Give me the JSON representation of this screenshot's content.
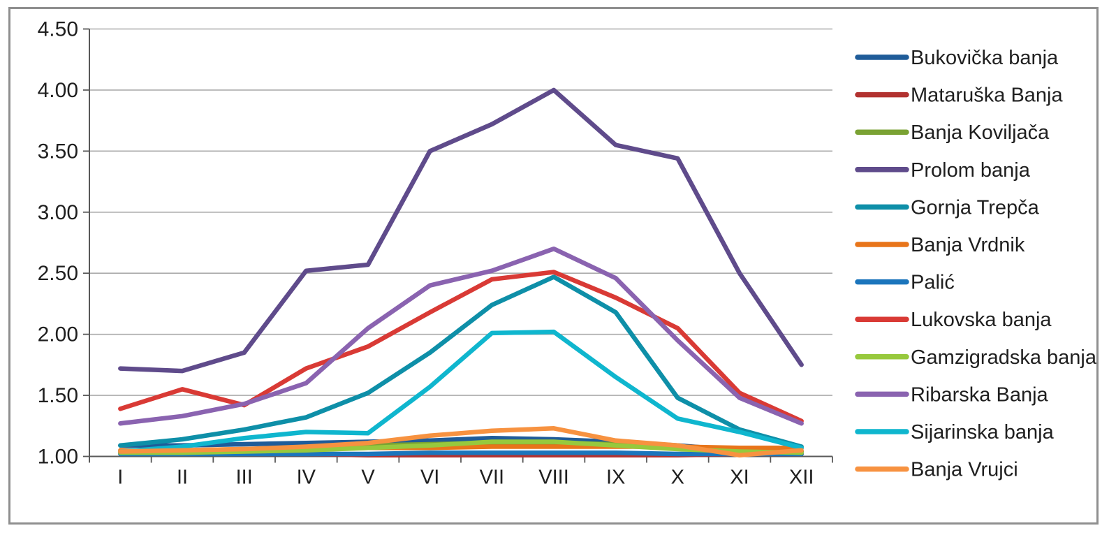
{
  "chart_data": {
    "type": "line",
    "title": "",
    "xlabel": "",
    "ylabel": "",
    "categories": [
      "I",
      "II",
      "III",
      "IV",
      "V",
      "VI",
      "VII",
      "VIII",
      "IX",
      "X",
      "XI",
      "XII"
    ],
    "y_ticks": [
      "4.50",
      "4.00",
      "3.50",
      "3.00",
      "2.50",
      "2.00",
      "1.50",
      "1.00"
    ],
    "ylim": [
      1.0,
      4.5
    ],
    "grid": true,
    "legend_position": "right",
    "series": [
      {
        "name": "Bukovička banja",
        "color": "#1F5C99",
        "values": [
          1.09,
          1.09,
          1.1,
          1.11,
          1.12,
          1.13,
          1.15,
          1.14,
          1.12,
          1.09,
          1.05,
          1.04
        ]
      },
      {
        "name": "Mataruška Banja",
        "color": "#B23230",
        "values": [
          1.03,
          1.03,
          1.02,
          1.02,
          1.01,
          1.01,
          1.01,
          1.01,
          1.01,
          1.01,
          1.02,
          1.02
        ]
      },
      {
        "name": "Banja Koviljača",
        "color": "#7AA233",
        "values": [
          1.04,
          1.04,
          1.05,
          1.07,
          1.09,
          1.1,
          1.11,
          1.11,
          1.1,
          1.08,
          1.05,
          1.04
        ]
      },
      {
        "name": "Prolom banja",
        "color": "#5F4B8B",
        "values": [
          1.72,
          1.7,
          1.85,
          2.52,
          2.57,
          3.5,
          3.72,
          4.0,
          3.55,
          3.44,
          2.5,
          1.75
        ]
      },
      {
        "name": "Gornja Trepča",
        "color": "#0E8FA8",
        "values": [
          1.09,
          1.14,
          1.22,
          1.32,
          1.52,
          1.85,
          2.24,
          2.47,
          2.18,
          1.48,
          1.22,
          1.08
        ]
      },
      {
        "name": "Banja Vrdnik",
        "color": "#E8751A",
        "values": [
          1.05,
          1.05,
          1.06,
          1.06,
          1.07,
          1.07,
          1.08,
          1.08,
          1.08,
          1.08,
          1.07,
          1.07
        ]
      },
      {
        "name": "Palić",
        "color": "#1B75BC",
        "values": [
          1.02,
          1.02,
          1.02,
          1.02,
          1.02,
          1.03,
          1.03,
          1.03,
          1.03,
          1.02,
          1.02,
          1.02
        ]
      },
      {
        "name": "Lukovska banja",
        "color": "#D93A35",
        "values": [
          1.39,
          1.55,
          1.42,
          1.72,
          1.9,
          2.18,
          2.45,
          2.51,
          2.3,
          2.05,
          1.52,
          1.29
        ]
      },
      {
        "name": "Gamzigradska banja",
        "color": "#97C93D",
        "values": [
          1.03,
          1.03,
          1.04,
          1.05,
          1.07,
          1.09,
          1.12,
          1.12,
          1.09,
          1.06,
          1.04,
          1.03
        ]
      },
      {
        "name": "Ribarska Banja",
        "color": "#8A63B0",
        "values": [
          1.27,
          1.33,
          1.43,
          1.6,
          2.05,
          2.4,
          2.52,
          2.7,
          2.46,
          1.95,
          1.48,
          1.27
        ]
      },
      {
        "name": "Sijarinska banja",
        "color": "#0FB6CE",
        "values": [
          1.04,
          1.08,
          1.15,
          1.2,
          1.19,
          1.57,
          2.01,
          2.02,
          1.65,
          1.31,
          1.2,
          1.07
        ]
      },
      {
        "name": "Banja Vrujci",
        "color": "#F79240",
        "values": [
          1.04,
          1.05,
          1.06,
          1.08,
          1.11,
          1.17,
          1.21,
          1.23,
          1.13,
          1.09,
          1.01,
          1.05
        ]
      }
    ]
  },
  "colors": {
    "background": "#FFFFFF",
    "border": "#8F8F8F",
    "axis": "#595959",
    "gridline": "#ABABAB",
    "tick_text": "#1F1F1F",
    "legend_text": "#1F1F1F"
  }
}
